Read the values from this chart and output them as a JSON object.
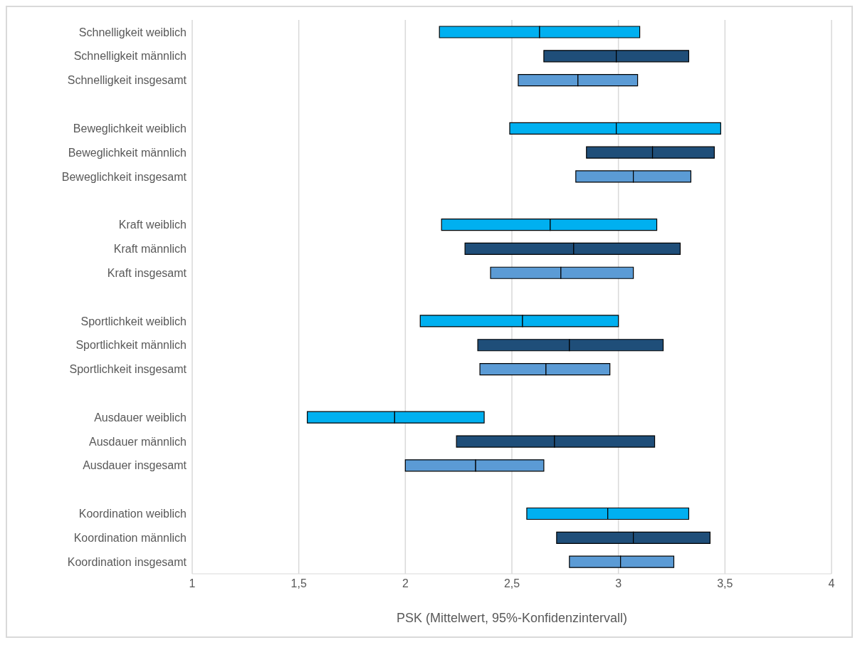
{
  "chart_data": {
    "type": "bar",
    "orientation": "horizontal",
    "xlabel": "PSK (Mittelwert, 95%-Konfidenzintervall)",
    "categories": [
      "Schnelligkeit weiblich",
      "Schnelligkeit männlich",
      "Schnelligkeit insgesamt",
      null,
      "Beweglichkeit weiblich",
      "Beweglichkeit männlich",
      "Beweglichkeit insgesamt",
      null,
      "Kraft weiblich",
      "Kraft männlich",
      "Kraft insgesamt",
      null,
      "Sportlichkeit weiblich",
      "Sportlichkeit männlich",
      "Sportlichkeit insgesamt",
      null,
      "Ausdauer weiblich",
      "Ausdauer männlich",
      "Ausdauer insgesamt",
      null,
      "Koordination weiblich",
      "Koordination männlich",
      "Koordination insgesamt"
    ],
    "series": [
      {
        "base": [
          2.16,
          2.65,
          2.53,
          null,
          2.49,
          2.85,
          2.8,
          null,
          2.17,
          2.28,
          2.4,
          null,
          2.07,
          2.34,
          2.35,
          null,
          1.54,
          2.24,
          2.0,
          null,
          2.57,
          2.71,
          2.77
        ],
        "values": [
          0.47,
          0.34,
          0.28,
          null,
          0.5,
          0.31,
          0.27,
          null,
          0.51,
          0.51,
          0.33,
          null,
          0.48,
          0.43,
          0.31,
          null,
          0.41,
          0.46,
          0.33,
          null,
          0.38,
          0.36,
          0.24
        ],
        "colors": [
          "#00b0f0",
          "#1f4e79",
          "#5b9bd5",
          null,
          "#00b0f0",
          "#1f4e79",
          "#5b9bd5",
          null,
          "#00b0f0",
          "#1f4e79",
          "#5b9bd5",
          null,
          "#00b0f0",
          "#1f4e79",
          "#5b9bd5",
          null,
          "#00b0f0",
          "#1f4e79",
          "#5b9bd5",
          null,
          "#00b0f0",
          "#1f4e79",
          "#5b9bd5"
        ]
      },
      {
        "base": [
          2.63,
          2.99,
          2.81,
          null,
          2.99,
          3.16,
          3.07,
          null,
          2.68,
          2.79,
          2.73,
          null,
          2.55,
          2.77,
          2.66,
          null,
          1.95,
          2.7,
          2.33,
          null,
          2.95,
          3.07,
          3.01
        ],
        "values": [
          0.47,
          0.34,
          0.28,
          null,
          0.49,
          0.29,
          0.27,
          null,
          0.5,
          0.5,
          0.34,
          null,
          0.45,
          0.44,
          0.3,
          null,
          0.42,
          0.47,
          0.32,
          null,
          0.38,
          0.36,
          0.25
        ],
        "colors": [
          "#00b0f0",
          "#1f4e79",
          "#5b9bd5",
          null,
          "#00b0f0",
          "#1f4e79",
          "#5b9bd5",
          null,
          "#00b0f0",
          "#1f4e79",
          "#5b9bd5",
          null,
          "#00b0f0",
          "#1f4e79",
          "#5b9bd5",
          null,
          "#00b0f0",
          "#1f4e79",
          "#5b9bd5",
          null,
          "#00b0f0",
          "#1f4e79",
          "#5b9bd5"
        ]
      }
    ],
    "xlim": [
      1,
      4
    ],
    "xticks": [
      1,
      {
        "value": 1.5,
        "label": "1,5"
      },
      2,
      {
        "value": 2.5,
        "label": "2,5"
      },
      3,
      {
        "value": 3.5,
        "label": "3,5"
      },
      4
    ],
    "grid": "x",
    "legend": false
  }
}
